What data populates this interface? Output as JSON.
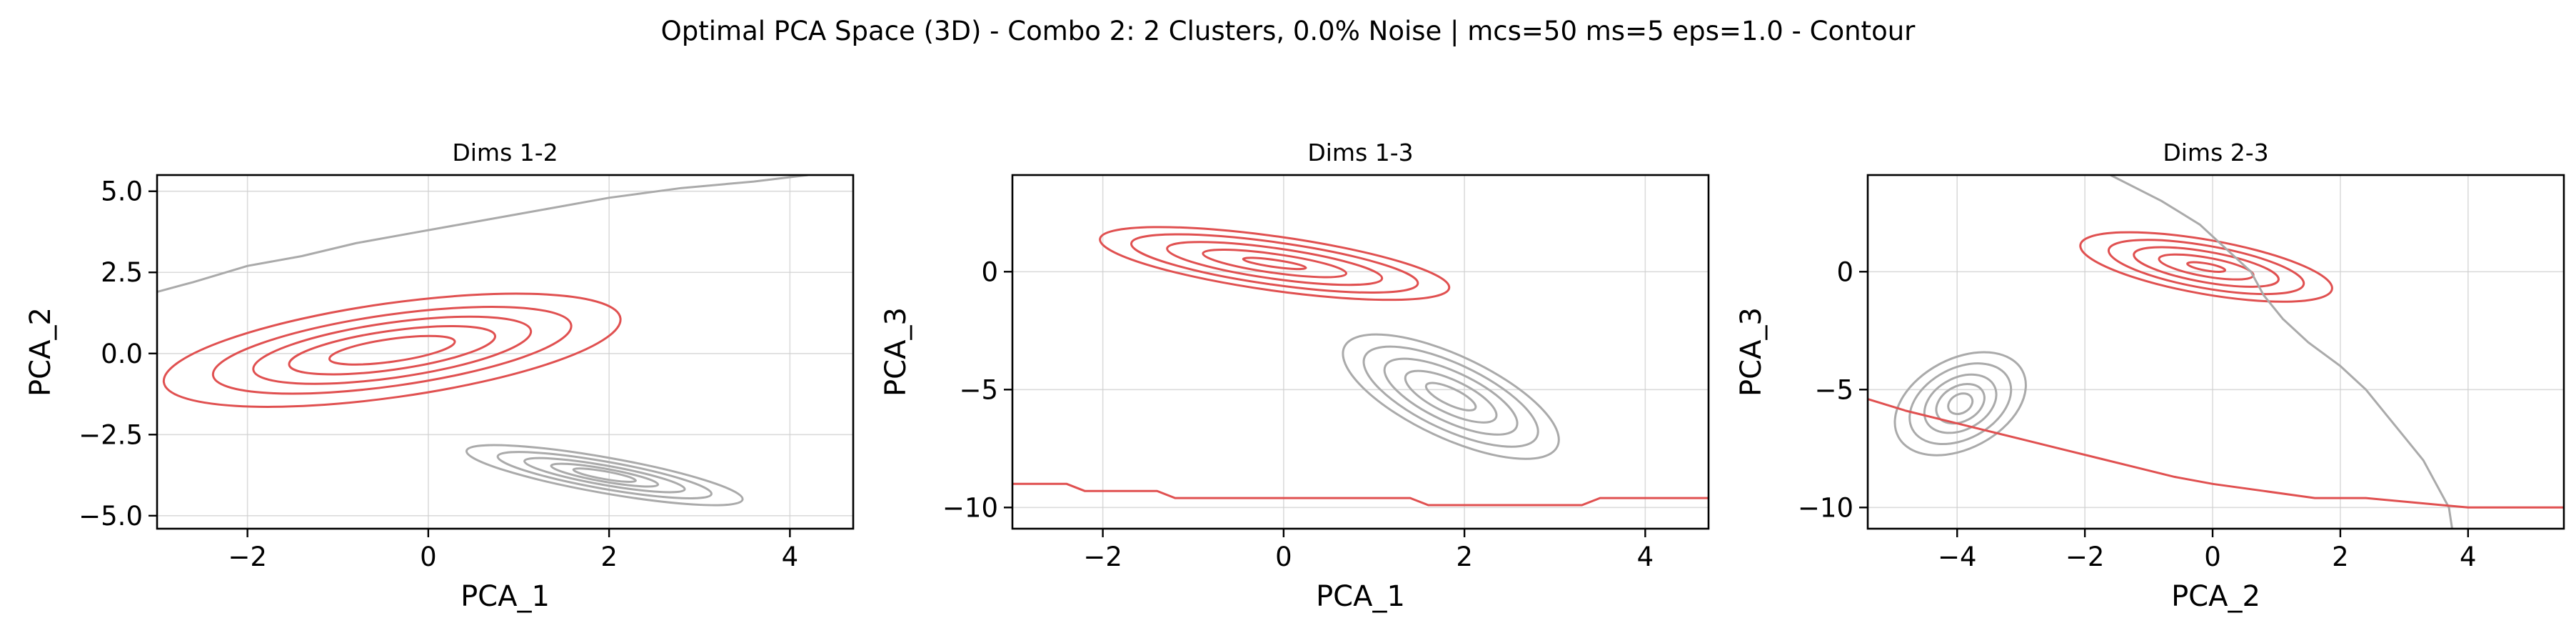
{
  "figure_title": "Optimal PCA Space (3D) - Combo 2: 2 Clusters, 0.0% Noise | mcs=50 ms=5 eps=1.0 - Contour",
  "colors": {
    "cluster_red": "#e05050",
    "cluster_gray": "#aaaaaa",
    "grid": "#d0d0d0"
  },
  "chart_data": [
    {
      "type": "contour",
      "title": "Dims 1-2",
      "xlabel": "PCA_1",
      "ylabel": "PCA_2",
      "xlim": [
        -3.0,
        4.7
      ],
      "ylim": [
        -5.4,
        5.5
      ],
      "xticks": [
        -2,
        0,
        2,
        4
      ],
      "xtick_labels": [
        "−2",
        "0",
        "2",
        "4"
      ],
      "yticks": [
        -5.0,
        -2.5,
        0.0,
        2.5,
        5.0
      ],
      "ytick_labels": [
        "−5.0",
        "−2.5",
        "0.0",
        "2.5",
        "5.0"
      ],
      "grid": true,
      "series": [
        {
          "color": "#e05050",
          "kind": "contour",
          "center": [
            -0.4,
            0.1
          ],
          "rx": [
            2.55,
            2.0,
            1.55,
            1.15,
            0.7
          ],
          "ry": [
            1.45,
            1.1,
            0.85,
            0.6,
            0.35
          ],
          "tilt": -8
        },
        {
          "color": "#aaaaaa",
          "kind": "contour",
          "center": [
            1.95,
            -3.75
          ],
          "rx": [
            1.55,
            1.2,
            0.9,
            0.6,
            0.35
          ],
          "ry": [
            0.55,
            0.42,
            0.3,
            0.2,
            0.12
          ],
          "tilt": 10
        },
        {
          "color": "#aaaaaa",
          "kind": "boundary",
          "points": [
            [
              -3.0,
              1.9
            ],
            [
              -2.6,
              2.2
            ],
            [
              -2.0,
              2.7
            ],
            [
              -1.4,
              3.0
            ],
            [
              -0.8,
              3.4
            ],
            [
              -0.2,
              3.7
            ],
            [
              0.4,
              4.0
            ],
            [
              1.2,
              4.4
            ],
            [
              2.0,
              4.8
            ],
            [
              2.8,
              5.1
            ],
            [
              3.6,
              5.3
            ],
            [
              4.2,
              5.5
            ]
          ]
        }
      ]
    },
    {
      "type": "contour",
      "title": "Dims 1-3",
      "xlabel": "PCA_1",
      "ylabel": "PCA_3",
      "xlim": [
        -3.0,
        4.7
      ],
      "ylim": [
        -10.9,
        4.1
      ],
      "xticks": [
        -2,
        0,
        2,
        4
      ],
      "xtick_labels": [
        "−2",
        "0",
        "2",
        "4"
      ],
      "yticks": [
        -10,
        -5,
        0
      ],
      "ytick_labels": [
        "−10",
        "−5",
        "0"
      ],
      "grid": true,
      "series": [
        {
          "color": "#e05050",
          "kind": "contour",
          "center": [
            -0.1,
            0.35
          ],
          "rx": [
            1.95,
            1.6,
            1.2,
            0.8,
            0.35
          ],
          "ry": [
            1.15,
            0.9,
            0.65,
            0.4,
            0.15
          ],
          "tilt": 8
        },
        {
          "color": "#aaaaaa",
          "kind": "contour",
          "center": [
            1.85,
            -5.3
          ],
          "rx": [
            1.3,
            1.05,
            0.8,
            0.55,
            0.3
          ],
          "ry": [
            1.75,
            1.4,
            1.05,
            0.7,
            0.35
          ],
          "tilt": 25
        },
        {
          "color": "#e05050",
          "kind": "boundary",
          "points": [
            [
              -3.0,
              -9.0
            ],
            [
              -2.4,
              -9.0
            ],
            [
              -2.2,
              -9.3
            ],
            [
              -1.4,
              -9.3
            ],
            [
              -1.2,
              -9.6
            ],
            [
              1.4,
              -9.6
            ],
            [
              1.6,
              -9.9
            ],
            [
              3.3,
              -9.9
            ],
            [
              3.5,
              -9.6
            ],
            [
              4.7,
              -9.6
            ]
          ]
        }
      ]
    },
    {
      "type": "contour",
      "title": "Dims 2-3",
      "xlabel": "PCA_2",
      "ylabel": "PCA_3",
      "xlim": [
        -5.4,
        5.5
      ],
      "ylim": [
        -10.9,
        4.1
      ],
      "xticks": [
        -4,
        -2,
        0,
        2,
        4
      ],
      "xtick_labels": [
        "−4",
        "−2",
        "0",
        "2",
        "4"
      ],
      "yticks": [
        -10,
        -5,
        0
      ],
      "ytick_labels": [
        "−10",
        "−5",
        "0"
      ],
      "grid": true,
      "series": [
        {
          "color": "#e05050",
          "kind": "contour",
          "center": [
            -0.1,
            0.2
          ],
          "rx": [
            2.0,
            1.55,
            1.15,
            0.75,
            0.3
          ],
          "ry": [
            1.15,
            0.9,
            0.65,
            0.4,
            0.15
          ],
          "tilt": 10
        },
        {
          "color": "#aaaaaa",
          "kind": "contour",
          "center": [
            -3.95,
            -5.6
          ],
          "rx": [
            1.1,
            0.85,
            0.6,
            0.4,
            0.2
          ],
          "ry": [
            1.9,
            1.5,
            1.1,
            0.75,
            0.4
          ],
          "tilt": -28
        },
        {
          "color": "#aaaaaa",
          "kind": "boundary",
          "points": [
            [
              -1.6,
              4.1
            ],
            [
              -0.8,
              3.0
            ],
            [
              -0.2,
              2.0
            ],
            [
              0.2,
              1.0
            ],
            [
              0.6,
              0.0
            ],
            [
              0.8,
              -1.0
            ],
            [
              1.1,
              -2.0
            ],
            [
              1.5,
              -3.0
            ],
            [
              2.0,
              -4.0
            ],
            [
              2.4,
              -5.0
            ],
            [
              2.7,
              -6.0
            ],
            [
              3.0,
              -7.0
            ],
            [
              3.3,
              -8.0
            ],
            [
              3.5,
              -9.0
            ],
            [
              3.7,
              -10.0
            ],
            [
              3.75,
              -10.9
            ]
          ]
        },
        {
          "color": "#e05050",
          "kind": "boundary",
          "points": [
            [
              -5.4,
              -5.4
            ],
            [
              -4.8,
              -5.9
            ],
            [
              -4.2,
              -6.3
            ],
            [
              -3.6,
              -6.7
            ],
            [
              -3.0,
              -7.1
            ],
            [
              -2.4,
              -7.5
            ],
            [
              -1.8,
              -7.9
            ],
            [
              -1.2,
              -8.3
            ],
            [
              -0.6,
              -8.7
            ],
            [
              0.0,
              -9.0
            ],
            [
              0.8,
              -9.3
            ],
            [
              1.6,
              -9.6
            ],
            [
              2.4,
              -9.6
            ],
            [
              3.2,
              -9.8
            ],
            [
              4.0,
              -10.0
            ],
            [
              5.5,
              -10.0
            ]
          ]
        }
      ]
    }
  ]
}
